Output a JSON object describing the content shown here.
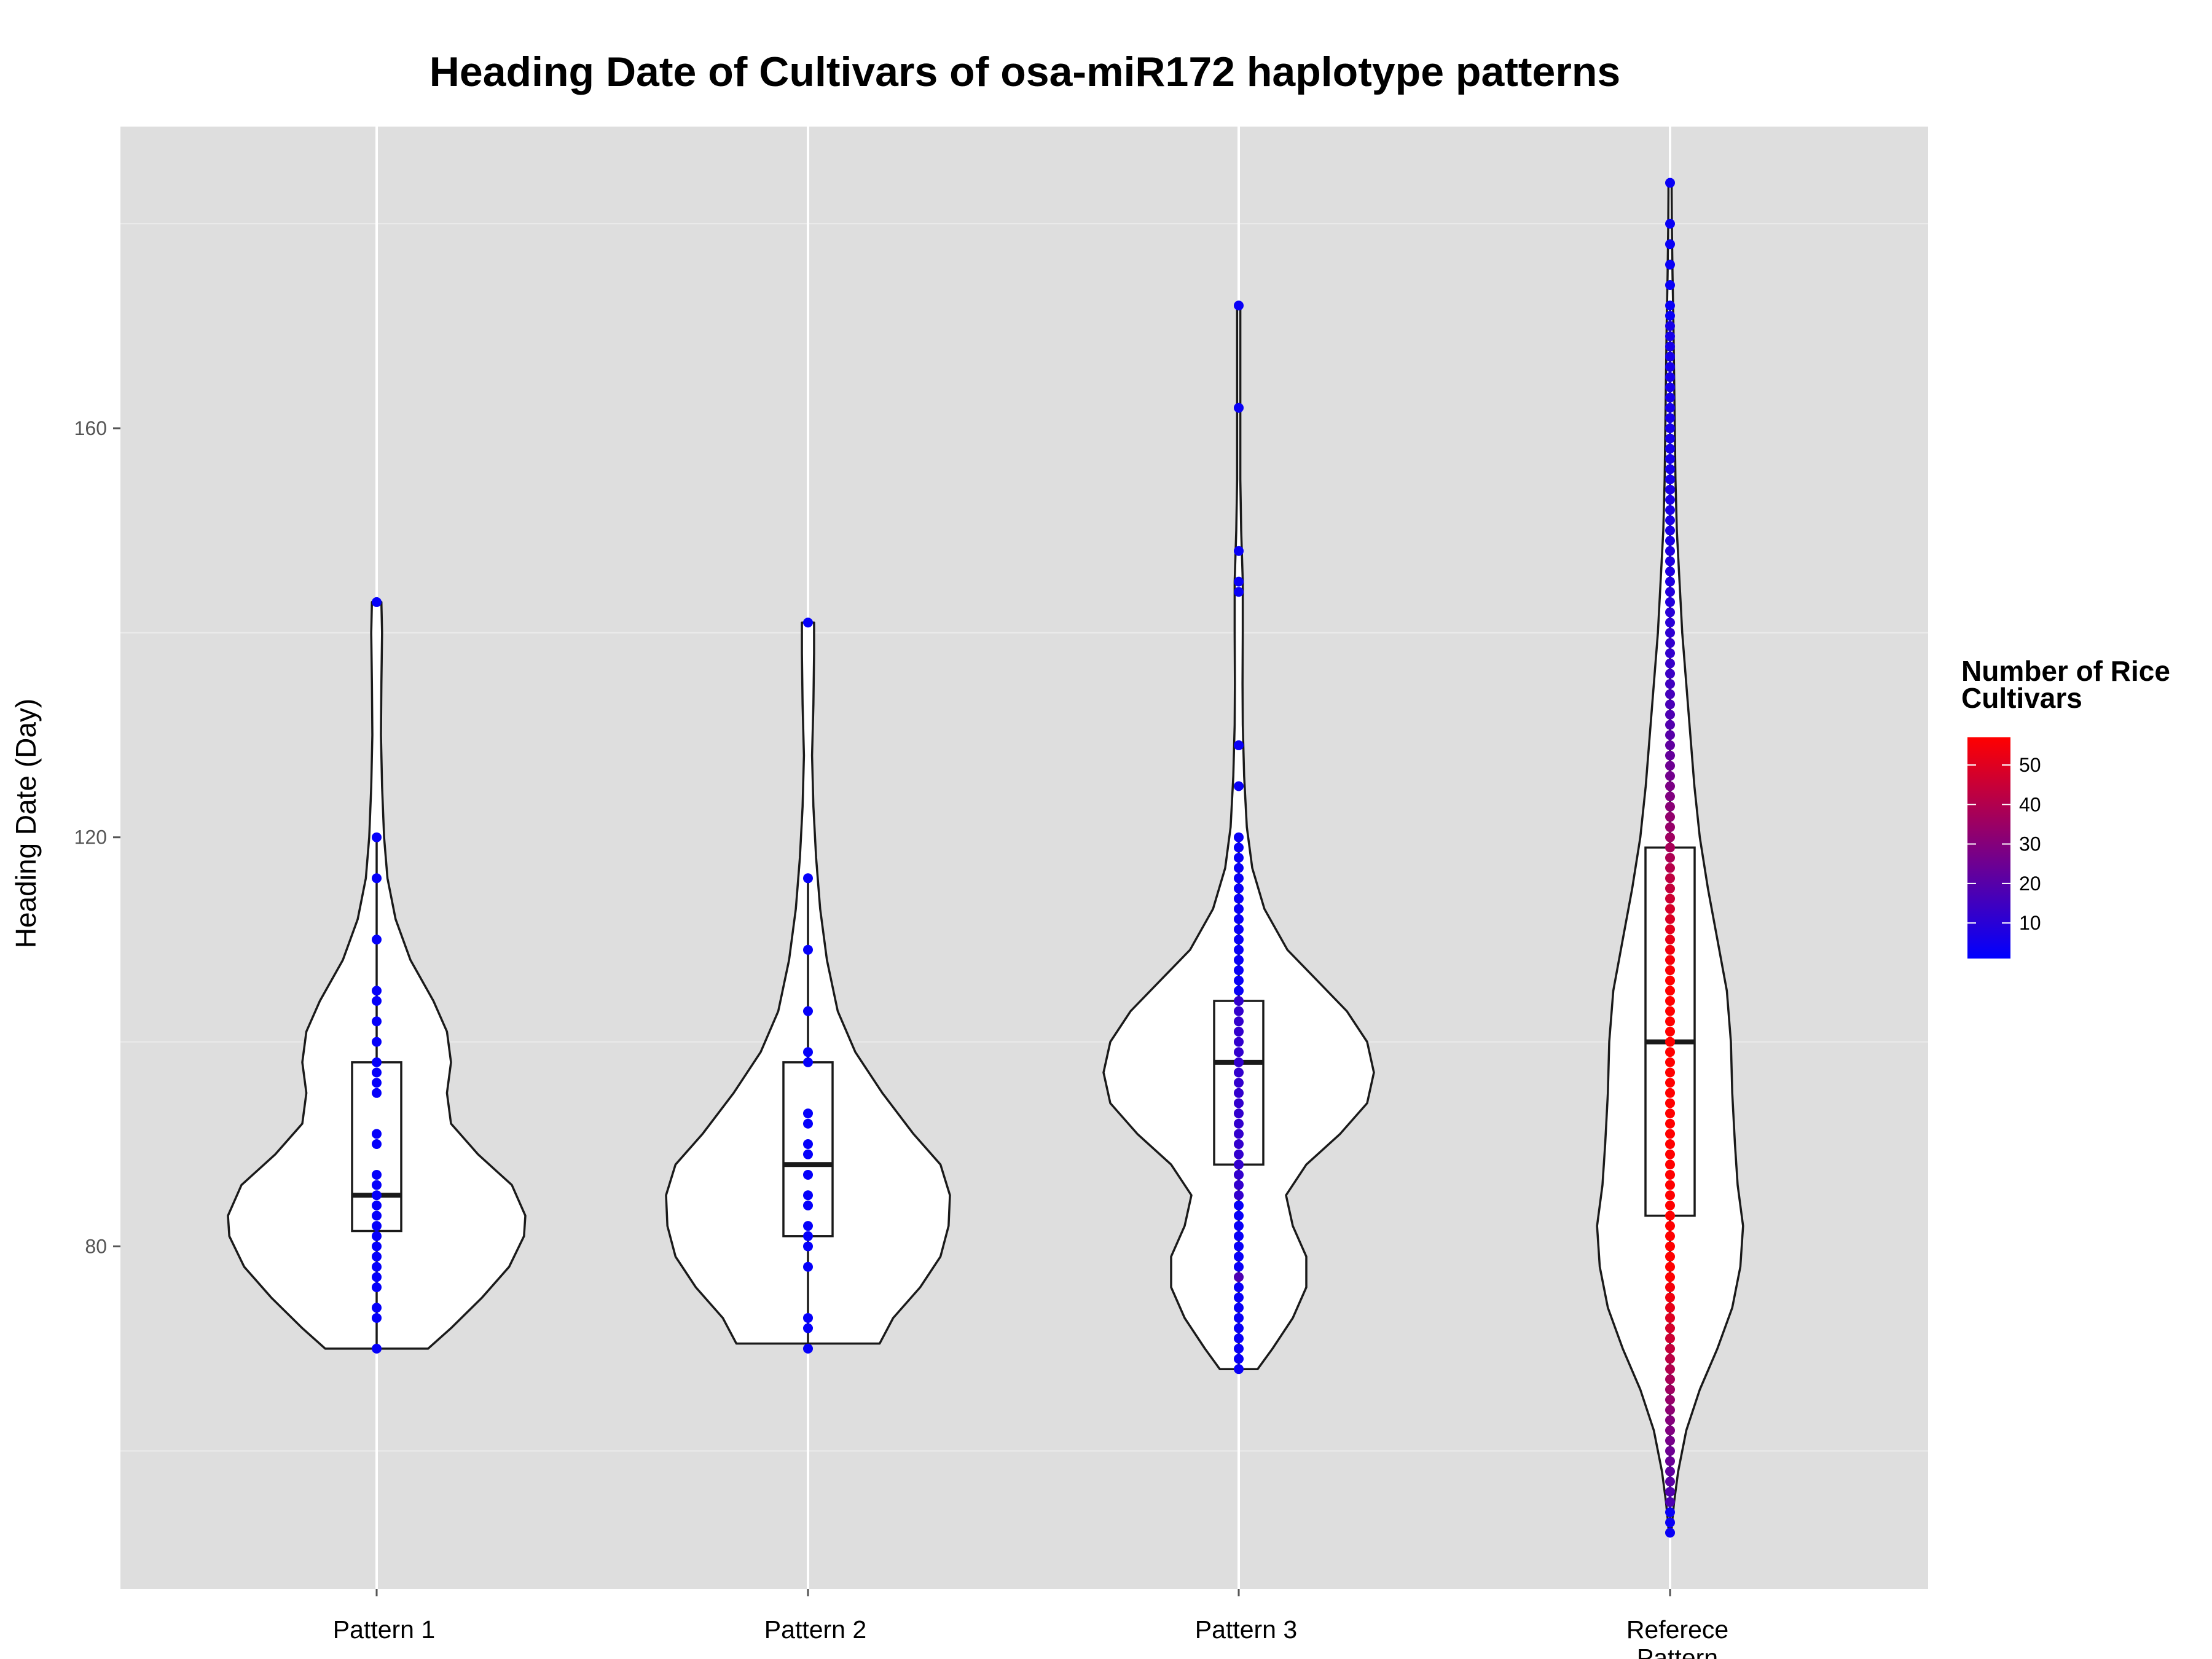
{
  "chart_data": {
    "type": "violin",
    "title": "Heading Date of Cultivars of osa-miR172 haplotype patterns",
    "xlabel": "",
    "ylabel": "Heading Date (Day)",
    "ylim": [
      46.5,
      189.5
    ],
    "yticks": [
      80,
      120,
      160
    ],
    "grid": true,
    "legend": {
      "title_lines": [
        "Number of Rice",
        "Cultivars"
      ],
      "placement": "right",
      "range": [
        1,
        57
      ],
      "ticks": [
        10,
        20,
        30,
        40,
        50
      ],
      "color_low": "#0000FF",
      "color_high": "#FF0000"
    },
    "colors": {
      "panel": "#DEDEDE",
      "grid_major": "#FFFFFF",
      "grid_minor": "#EBEBEB"
    },
    "categories": [
      {
        "lines": [
          "Pattern 1"
        ],
        "box": {
          "min": 70,
          "q1": 81.5,
          "median": 85,
          "q3": 98,
          "max": 120
        }
      },
      {
        "lines": [
          "Pattern 2"
        ],
        "box": {
          "min": 70,
          "q1": 81,
          "median": 88,
          "q3": 98,
          "max": 116
        }
      },
      {
        "lines": [
          "Pattern 3"
        ],
        "box": {
          "min": 68,
          "q1": 88,
          "median": 98,
          "q3": 104,
          "max": 120
        }
      },
      {
        "lines": [
          "Referece",
          "Pattern"
        ],
        "box": {
          "min": 52,
          "q1": 83,
          "median": 100,
          "q3": 119,
          "max": 172
        }
      }
    ]
  }
}
